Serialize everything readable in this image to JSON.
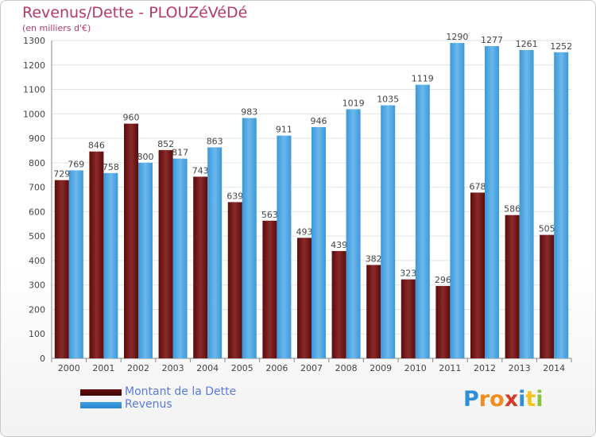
{
  "header": {
    "title": "Revenus/Dette - PLOUZéVéDé",
    "subtitle": "(en milliers d'€)"
  },
  "chart_data": {
    "type": "bar",
    "categories": [
      "2000",
      "2001",
      "2002",
      "2003",
      "2004",
      "2005",
      "2006",
      "2007",
      "2008",
      "2009",
      "2010",
      "2011",
      "2012",
      "2013",
      "2014"
    ],
    "series": [
      {
        "name": "Montant de la Dette",
        "values": [
          729,
          846,
          960,
          852,
          743,
          639,
          563,
          493,
          439,
          382,
          323,
          296,
          678,
          586,
          505
        ],
        "color": "#7a1a1a"
      },
      {
        "name": "Revenus",
        "values": [
          769,
          758,
          800,
          817,
          863,
          983,
          911,
          946,
          1019,
          1035,
          1119,
          1290,
          1277,
          1261,
          1252
        ],
        "color": "#4aa3e0"
      }
    ],
    "y_ticks": [
      0,
      100,
      200,
      300,
      400,
      500,
      600,
      700,
      800,
      900,
      1000,
      1100,
      1200,
      1300
    ],
    "ylim": [
      0,
      1300
    ],
    "grid": true,
    "legend_position": "bottom-left"
  },
  "legend": {
    "items": [
      {
        "label": "Montant de la Dette",
        "color": "#6b0f0f"
      },
      {
        "label": "Revenus",
        "color": "#3e9ee0"
      }
    ]
  },
  "logo": {
    "text": "Proxiti",
    "letters": [
      "P",
      "r",
      "o",
      "x",
      "i",
      "t",
      "i"
    ],
    "colors": [
      "#2f8fd6",
      "#f28c1e",
      "#f28c1e",
      "#d43a2a",
      "#2f8fd6",
      "#f2c21e",
      "#8ac43f"
    ]
  }
}
